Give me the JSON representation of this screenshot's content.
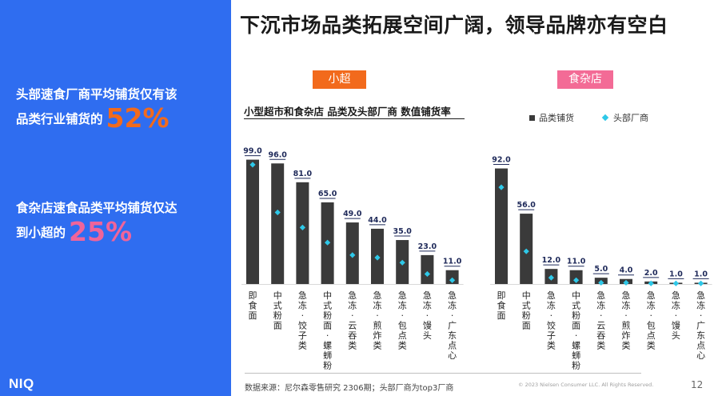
{
  "title": "下沉市场品类拓展空间广阔，领导品牌亦有空白",
  "left_panel": {
    "stat1_line1": "头部速食厂商平均铺货仅有该",
    "stat1_line2": "品类行业铺货的",
    "stat1_pct": "52%",
    "stat2_line1": "食杂店速食品类平均铺货仅达",
    "stat2_line2": "到小超的",
    "stat2_pct": "25%",
    "logo": "NIQ"
  },
  "tags": {
    "left": "小超",
    "right": "食杂店"
  },
  "colors": {
    "blue_panel": "#2f6df0",
    "orange": "#f26a1c",
    "pink": "#f36b96",
    "bar": "#3a3a3a",
    "dot": "#2ec8e8",
    "label": "#1f2a5a"
  },
  "footer": {
    "source": "数据来源：尼尔森零售研究 2306期；头部厂商为top3厂商",
    "copyright": "© 2023 Nielsen Consumer LLC. All Rights Reserved.",
    "page": "12"
  },
  "chart_data": {
    "type": "bar",
    "title": "小型超市和食杂店 品类及头部厂商 数值铺货率",
    "legend": [
      "品类铺货",
      "头部厂商"
    ],
    "groups": [
      {
        "name": "小超",
        "categories": [
          "即食面",
          "中式粉面",
          "急冻-饺子类",
          "中式粉面-螺蛳粉",
          "急冻-云吞类",
          "急冻-煎炸类",
          "急冻-包点类",
          "急冻-馒头",
          "急冻-广东点心"
        ],
        "series": [
          {
            "name": "品类铺货",
            "values": [
              99.0,
              96.0,
              81.0,
              65.0,
              49.0,
              44.0,
              35.0,
              23.0,
              11.0
            ]
          },
          {
            "name": "头部厂商",
            "values": [
              95,
              57,
              45,
              33,
              23,
              21,
              17,
              8,
              3
            ]
          }
        ]
      },
      {
        "name": "食杂店",
        "categories": [
          "即食面",
          "中式粉面",
          "急冻-饺子类",
          "中式粉面-螺蛳粉",
          "急冻-云吞类",
          "急冻-煎炸类",
          "急冻-包点类",
          "急冻-馒头",
          "急冻-广东点心"
        ],
        "series": [
          {
            "name": "品类铺货",
            "values": [
              92.0,
              56.0,
              12.0,
              11.0,
              5.0,
              4.0,
              2.0,
              1.0,
              1.0
            ]
          },
          {
            "name": "头部厂商",
            "values": [
              77,
              26,
              5,
              3,
              1,
              1,
              0.5,
              0.5,
              0.5
            ]
          }
        ]
      }
    ],
    "ylim": [
      0,
      100
    ]
  }
}
